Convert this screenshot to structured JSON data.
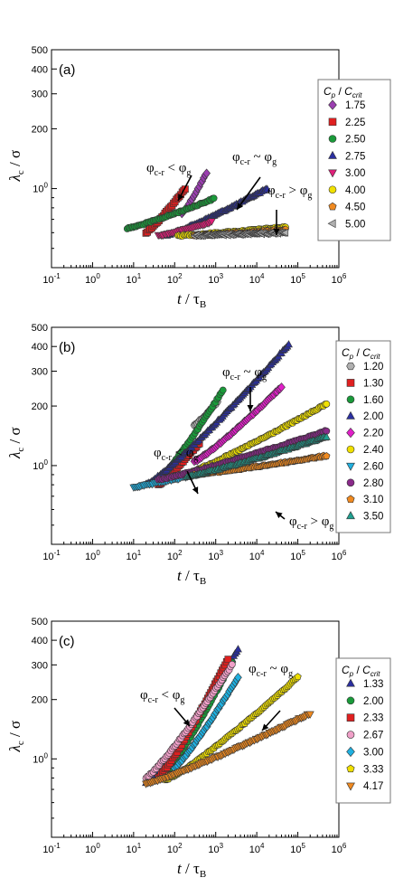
{
  "chart_data": [
    {
      "type": "scatter",
      "panel_label": "(a)",
      "xlabel_main": "t",
      "xlabel_sep": " / ",
      "xlabel_greek": "τ",
      "xlabel_sub": "B",
      "ylabel_main": "λ",
      "ylabel_sub": "c",
      "ylabel_sep": " / ",
      "ylabel_greek": "σ",
      "x_scale": "log",
      "y_scale": "log",
      "xlim": [
        0.1,
        1000000
      ],
      "ylim": [
        40,
        500
      ],
      "x_ticks": [
        "10-1",
        "100",
        "101",
        "102",
        "103",
        "104",
        "105",
        "106"
      ],
      "y_ticks": [
        "100",
        "200",
        "300",
        "400",
        "500"
      ],
      "legend_header": "Cp / Ccrit",
      "legend_location": "right",
      "annotations": [
        {
          "text": "φc-r < φg"
        },
        {
          "text": "φc-r ~ φg"
        },
        {
          "text": "φc-r > φg"
        }
      ],
      "series": [
        {
          "name": "1.75",
          "marker": "diamond",
          "color": "#9b3fb0",
          "t_start": 150,
          "t_end": 600,
          "y_start": 75,
          "y_end": 120
        },
        {
          "name": "2.25",
          "marker": "square",
          "color": "#e02020",
          "t_start": 20,
          "t_end": 180,
          "y_start": 60,
          "y_end": 100
        },
        {
          "name": "2.50",
          "marker": "circle",
          "color": "#1a9a3a",
          "t_start": 7,
          "t_end": 900,
          "y_start": 63,
          "y_end": 89
        },
        {
          "name": "2.75",
          "marker": "triangle-up",
          "color": "#2b2fa0",
          "t_start": 60,
          "t_end": 18000,
          "y_start": 58,
          "y_end": 100
        },
        {
          "name": "3.00",
          "marker": "triangle-down",
          "color": "#e0207a",
          "t_start": 40,
          "t_end": 800,
          "y_start": 58,
          "y_end": 68
        },
        {
          "name": "4.00",
          "marker": "circle",
          "color": "#f0e000",
          "t_start": 120,
          "t_end": 50000,
          "y_start": 58,
          "y_end": 64
        },
        {
          "name": "4.50",
          "marker": "pentagon",
          "color": "#f08a20",
          "t_start": 300,
          "t_end": 50000,
          "y_start": 58,
          "y_end": 62
        },
        {
          "name": "5.00",
          "marker": "triangle-left",
          "color": "#b0b0b0",
          "t_start": 300,
          "t_end": 50000,
          "y_start": 58,
          "y_end": 60
        }
      ]
    },
    {
      "type": "scatter",
      "panel_label": "(b)",
      "xlabel_main": "t",
      "xlabel_sep": " / ",
      "xlabel_greek": "τ",
      "xlabel_sub": "B",
      "ylabel_main": "λ",
      "ylabel_sub": "c",
      "ylabel_sep": " / ",
      "ylabel_greek": "σ",
      "x_scale": "log",
      "y_scale": "log",
      "xlim": [
        0.1,
        1000000
      ],
      "ylim": [
        40,
        500
      ],
      "x_ticks": [
        "10-1",
        "100",
        "101",
        "102",
        "103",
        "104",
        "105",
        "106"
      ],
      "y_ticks": [
        "100",
        "200",
        "300",
        "400",
        "500"
      ],
      "legend_header": "Cp / Ccrit",
      "legend_location": "right",
      "annotations": [
        {
          "text": "φc-r < φg"
        },
        {
          "text": "φc-r ~ φg"
        },
        {
          "text": "φc-r > φg"
        }
      ],
      "series": [
        {
          "name": "1.20",
          "marker": "hexagon",
          "color": "#b0b0b0",
          "t_start": 300,
          "t_end": 1100,
          "y_start": 160,
          "y_end": 210
        },
        {
          "name": "1.30",
          "marker": "square",
          "color": "#e02020",
          "t_start": 40,
          "t_end": 400,
          "y_start": 80,
          "y_end": 130
        },
        {
          "name": "1.60",
          "marker": "circle",
          "color": "#1a9a3a",
          "t_start": 40,
          "t_end": 1500,
          "y_start": 85,
          "y_end": 240
        },
        {
          "name": "2.00",
          "marker": "triangle-up",
          "color": "#2b2fa0",
          "t_start": 20,
          "t_end": 60000,
          "y_start": 80,
          "y_end": 410
        },
        {
          "name": "2.20",
          "marker": "diamond",
          "color": "#e020c8",
          "t_start": 300,
          "t_end": 40000,
          "y_start": 105,
          "y_end": 250
        },
        {
          "name": "2.40",
          "marker": "circle",
          "color": "#f0e000",
          "t_start": 80,
          "t_end": 500000,
          "y_start": 85,
          "y_end": 205
        },
        {
          "name": "2.60",
          "marker": "triangle-down",
          "color": "#20b0e0",
          "t_start": 10,
          "t_end": 500,
          "y_start": 78,
          "y_end": 92
        },
        {
          "name": "2.80",
          "marker": "circle",
          "color": "#8a2a8a",
          "t_start": 40,
          "t_end": 500000,
          "y_start": 85,
          "y_end": 150
        },
        {
          "name": "3.10",
          "marker": "pentagon",
          "color": "#f08a20",
          "t_start": 300,
          "t_end": 500000,
          "y_start": 90,
          "y_end": 112
        },
        {
          "name": "3.50",
          "marker": "triangle-up",
          "color": "#20a090",
          "t_start": 200,
          "t_end": 500000,
          "y_start": 88,
          "y_end": 140
        }
      ]
    },
    {
      "type": "scatter",
      "panel_label": "(c)",
      "xlabel_main": "t",
      "xlabel_sep": " / ",
      "xlabel_greek": "τ",
      "xlabel_sub": "B",
      "ylabel_main": "λ",
      "ylabel_sub": "c",
      "ylabel_sep": " / ",
      "ylabel_greek": "σ",
      "x_scale": "log",
      "y_scale": "log",
      "xlim": [
        0.1,
        1000000
      ],
      "ylim": [
        40,
        500
      ],
      "x_ticks": [
        "10-1",
        "100",
        "101",
        "102",
        "103",
        "104",
        "105",
        "106"
      ],
      "y_ticks": [
        "100",
        "200",
        "300",
        "400",
        "500"
      ],
      "legend_header": "Cp / Ccrit",
      "legend_location": "right",
      "annotations": [
        {
          "text": "φc-r < φg"
        },
        {
          "text": "φc-r ~ φg"
        }
      ],
      "series": [
        {
          "name": "1.33",
          "marker": "triangle-up",
          "color": "#2b2fa0",
          "t_start": 20,
          "t_end": 3500,
          "y_start": 75,
          "y_end": 360
        },
        {
          "name": "2.00",
          "marker": "circle",
          "color": "#1a9a3a",
          "t_start": 60,
          "t_end": 2500,
          "y_start": 85,
          "y_end": 310
        },
        {
          "name": "2.33",
          "marker": "square",
          "color": "#e02020",
          "t_start": 40,
          "t_end": 2000,
          "y_start": 80,
          "y_end": 320
        },
        {
          "name": "2.67",
          "marker": "circle",
          "color": "#f0a0c8",
          "t_start": 20,
          "t_end": 2500,
          "y_start": 80,
          "y_end": 300
        },
        {
          "name": "3.00",
          "marker": "diamond",
          "color": "#20b0e0",
          "t_start": 100,
          "t_end": 3500,
          "y_start": 90,
          "y_end": 260
        },
        {
          "name": "3.33",
          "marker": "pentagon",
          "color": "#f0e000",
          "t_start": 60,
          "t_end": 100000,
          "y_start": 78,
          "y_end": 260
        },
        {
          "name": "4.17",
          "marker": "triangle-down",
          "color": "#f08a20",
          "t_start": 20,
          "t_end": 200000,
          "y_start": 75,
          "y_end": 170
        }
      ]
    }
  ]
}
